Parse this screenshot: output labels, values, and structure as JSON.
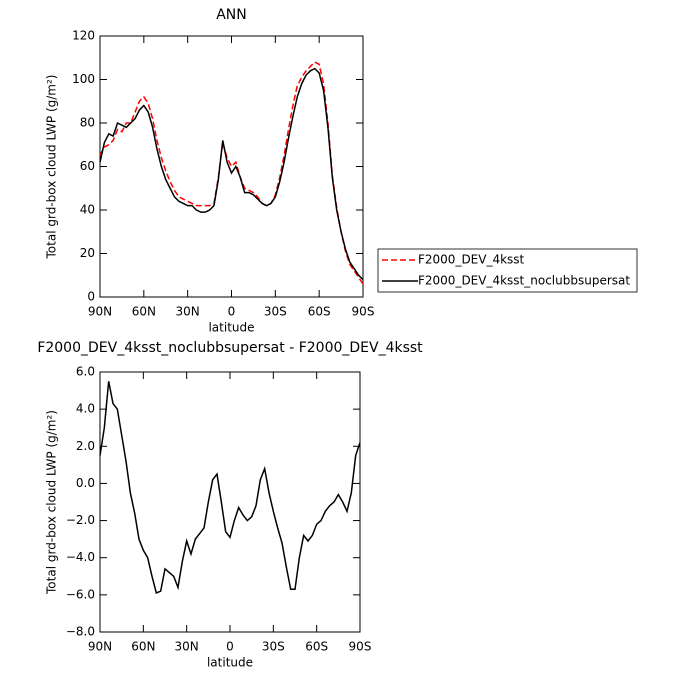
{
  "chart_data": [
    {
      "type": "line",
      "title": "ANN",
      "xlabel": "latitude",
      "ylabel": "Total grd-box cloud LWP (g/m²)",
      "x": [
        90,
        87,
        84,
        81,
        78,
        75,
        72,
        69,
        66,
        63,
        60,
        57,
        54,
        51,
        48,
        45,
        42,
        39,
        36,
        33,
        30,
        27,
        24,
        21,
        18,
        15,
        12,
        9,
        6,
        3,
        0,
        -3,
        -6,
        -9,
        -12,
        -15,
        -18,
        -21,
        -24,
        -27,
        -30,
        -33,
        -36,
        -39,
        -42,
        -45,
        -48,
        -51,
        -54,
        -57,
        -60,
        -63,
        -66,
        -69,
        -72,
        -75,
        -78,
        -81,
        -84,
        -87,
        -90
      ],
      "series": [
        {
          "name": "F2000_DEV_4ksst",
          "color": "#ff0000",
          "dash": true,
          "values": [
            65,
            69,
            70,
            72,
            77,
            76,
            80,
            80,
            85,
            90,
            92,
            89,
            82,
            72,
            64,
            58,
            53,
            49,
            46,
            45,
            44,
            43,
            42,
            42,
            42,
            42,
            43,
            55,
            71,
            64,
            60,
            62,
            55,
            50,
            49,
            48,
            46,
            43,
            42,
            43,
            47,
            55,
            65,
            77,
            88,
            97,
            101,
            104,
            106,
            108,
            107,
            98,
            80,
            56,
            41,
            30,
            21,
            15,
            12,
            9,
            6
          ]
        },
        {
          "name": "F2000_DEV_4ksst_noclubbsupersat",
          "color": "#000000",
          "dash": false,
          "values": [
            62,
            71,
            75,
            74,
            80,
            79,
            78,
            80,
            82,
            86,
            88,
            85,
            78,
            68,
            60,
            54,
            50,
            46,
            44,
            43,
            42,
            42,
            40,
            39,
            39,
            40,
            42,
            54,
            72,
            62,
            57,
            60,
            55,
            48,
            48,
            47,
            45,
            43,
            42,
            43,
            46,
            53,
            62,
            73,
            83,
            92,
            98,
            102,
            104,
            105,
            103,
            95,
            78,
            55,
            40,
            30,
            22,
            16,
            13,
            10,
            8
          ]
        }
      ],
      "xlim": [
        90,
        -90
      ],
      "xticks": [
        {
          "value": 90,
          "label": "90N"
        },
        {
          "value": 60,
          "label": "60N"
        },
        {
          "value": 30,
          "label": "30N"
        },
        0,
        {
          "value": -30,
          "label": "30S"
        },
        {
          "value": -60,
          "label": "60S"
        },
        {
          "value": -90,
          "label": "90S"
        }
      ],
      "ylim": [
        0,
        120
      ],
      "yticks": [
        0,
        20,
        40,
        60,
        80,
        100,
        120
      ],
      "legend": "right"
    },
    {
      "type": "line",
      "title": "F2000_DEV_4ksst_noclubbsupersat - F2000_DEV_4ksst",
      "xlabel": "latitude",
      "ylabel": "Total grd-box cloud LWP (g/m²)",
      "x": [
        90,
        87,
        84,
        81,
        78,
        75,
        72,
        69,
        66,
        63,
        60,
        57,
        54,
        51,
        48,
        45,
        42,
        39,
        36,
        33,
        30,
        27,
        24,
        21,
        18,
        15,
        12,
        9,
        6,
        3,
        0,
        -3,
        -6,
        -9,
        -12,
        -15,
        -18,
        -21,
        -24,
        -27,
        -30,
        -33,
        -36,
        -39,
        -42,
        -45,
        -48,
        -51,
        -54,
        -57,
        -60,
        -63,
        -66,
        -69,
        -72,
        -75,
        -78,
        -81,
        -84,
        -87,
        -90
      ],
      "series": [
        {
          "color": "#000000",
          "dash": false,
          "values": [
            1.5,
            3.0,
            5.5,
            4.3,
            4.0,
            2.6,
            1.2,
            -0.5,
            -1.6,
            -3.0,
            -3.6,
            -4.0,
            -5.0,
            -5.9,
            -5.8,
            -4.6,
            -4.8,
            -5.0,
            -5.6,
            -4.2,
            -3.1,
            -3.8,
            -3.0,
            -2.7,
            -2.4,
            -1.0,
            0.2,
            0.5,
            -1.0,
            -2.6,
            -2.9,
            -2.0,
            -1.3,
            -1.7,
            -2.0,
            -1.8,
            -1.2,
            0.2,
            0.8,
            -0.5,
            -1.5,
            -2.4,
            -3.2,
            -4.5,
            -5.7,
            -5.7,
            -4.0,
            -2.8,
            -3.1,
            -2.8,
            -2.2,
            -2.0,
            -1.5,
            -1.2,
            -1.0,
            -0.6,
            -1.0,
            -1.5,
            -0.5,
            1.5,
            2.2
          ]
        }
      ],
      "xlim": [
        90,
        -90
      ],
      "xticks": [
        {
          "value": 90,
          "label": "90N"
        },
        {
          "value": 60,
          "label": "60N"
        },
        {
          "value": 30,
          "label": "30N"
        },
        0,
        {
          "value": -30,
          "label": "30S"
        },
        {
          "value": -60,
          "label": "60S"
        },
        {
          "value": -90,
          "label": "90S"
        }
      ],
      "ylim": [
        -8,
        6
      ],
      "yticks": [
        {
          "value": -8,
          "label": "−8.0"
        },
        {
          "value": -6,
          "label": "−6.0"
        },
        {
          "value": -4,
          "label": "−4.0"
        },
        {
          "value": -2,
          "label": "−2.0"
        },
        {
          "value": 0,
          "label": "0.0"
        },
        {
          "value": 2,
          "label": "2.0"
        },
        {
          "value": 4,
          "label": "4.0"
        },
        {
          "value": 6,
          "label": "6.0"
        }
      ]
    }
  ]
}
